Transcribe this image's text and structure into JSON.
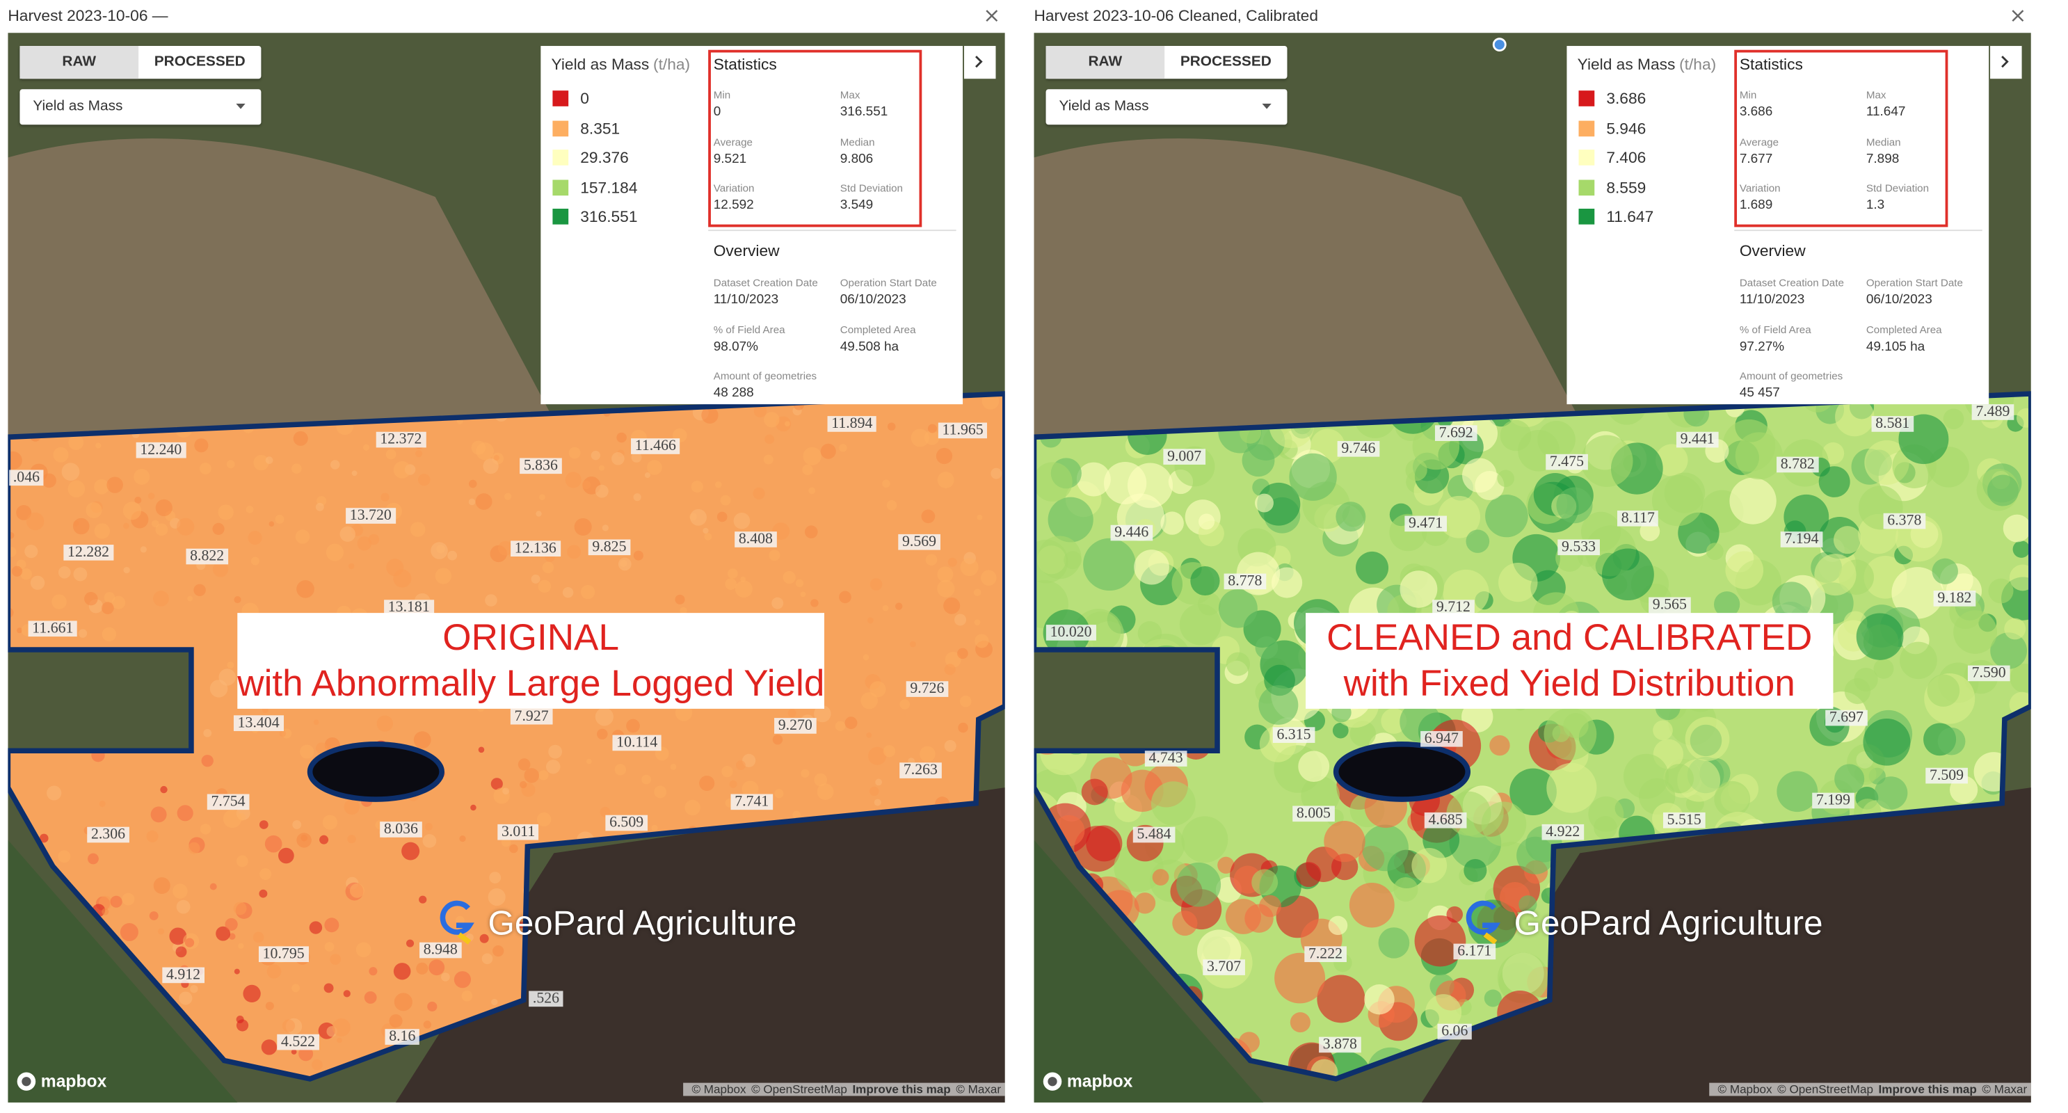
{
  "panels": [
    {
      "title": "Harvest 2023-10-06 —",
      "tabs": [
        "RAW",
        "PROCESSED"
      ],
      "dropdown": "Yield as Mass",
      "legend": {
        "title": "Yield as Mass",
        "unit": "(t/ha)",
        "items": [
          "0",
          "8.351",
          "29.376",
          "157.184",
          "316.551"
        ],
        "colors": [
          "#d7191c",
          "#fdae61",
          "#ffffbf",
          "#a6d96a",
          "#1a9641"
        ]
      },
      "statistics": {
        "title": "Statistics",
        "items": [
          {
            "label": "Min",
            "value": "0"
          },
          {
            "label": "Max",
            "value": "316.551"
          },
          {
            "label": "Average",
            "value": "9.521"
          },
          {
            "label": "Median",
            "value": "9.806"
          },
          {
            "label": "Variation",
            "value": "12.592"
          },
          {
            "label": "Std Deviation",
            "value": "3.549"
          }
        ]
      },
      "overview": {
        "title": "Overview",
        "items": [
          {
            "label": "Dataset Creation Date",
            "value": "11/10/2023"
          },
          {
            "label": "Operation Start Date",
            "value": "06/10/2023"
          },
          {
            "label": "% of Field Area",
            "value": "98.07%"
          },
          {
            "label": "Completed Area",
            "value": "49.508 ha"
          },
          {
            "label": "Amount of geometries",
            "value": "48 288"
          }
        ]
      },
      "map_labels": [
        ".046",
        "12.240",
        "12.372",
        "11.466",
        "11.894",
        "11.965",
        "5.836",
        "13.720",
        "12.282",
        "8.822",
        "12.136",
        "9.825",
        "8.408",
        "9.569",
        "11.661",
        "13.181",
        "9.726",
        "13.404",
        "7.927",
        "10.114",
        "9.270",
        "7.263",
        "7.754",
        "8.036",
        "3.011",
        "6.509",
        "7.741",
        "2.306",
        "4.912",
        "10.795",
        "8.948",
        ".526",
        "4.522",
        "8.16"
      ],
      "overlay": [
        "ORIGINAL",
        "with Abnormally Large Logged Yield"
      ],
      "watermark": "GeoPard Agriculture",
      "mapbox": "mapbox",
      "attribution": [
        "© Mapbox",
        "© OpenStreetMap",
        "Improve this map",
        "© Maxar"
      ]
    },
    {
      "title": "Harvest 2023-10-06 Cleaned, Calibrated",
      "tabs": [
        "RAW",
        "PROCESSED"
      ],
      "dropdown": "Yield as Mass",
      "legend": {
        "title": "Yield as Mass",
        "unit": "(t/ha)",
        "items": [
          "3.686",
          "5.946",
          "7.406",
          "8.559",
          "11.647"
        ],
        "colors": [
          "#d7191c",
          "#fdae61",
          "#ffffbf",
          "#a6d96a",
          "#1a9641"
        ]
      },
      "statistics": {
        "title": "Statistics",
        "items": [
          {
            "label": "Min",
            "value": "3.686"
          },
          {
            "label": "Max",
            "value": "11.647"
          },
          {
            "label": "Average",
            "value": "7.677"
          },
          {
            "label": "Median",
            "value": "7.898"
          },
          {
            "label": "Variation",
            "value": "1.689"
          },
          {
            "label": "Std Deviation",
            "value": "1.3"
          }
        ]
      },
      "overview": {
        "title": "Overview",
        "items": [
          {
            "label": "Dataset Creation Date",
            "value": "11/10/2023"
          },
          {
            "label": "Operation Start Date",
            "value": "06/10/2023"
          },
          {
            "label": "% of Field Area",
            "value": "97.27%"
          },
          {
            "label": "Completed Area",
            "value": "49.105 ha"
          },
          {
            "label": "Amount of geometries",
            "value": "45 457"
          }
        ]
      },
      "map_labels": [
        "9.007",
        "7.692",
        "9.746",
        "7.475",
        "9.441",
        "8.581",
        "7.489",
        "8.782",
        "9.446",
        "9.471",
        "8.117",
        "9.533",
        "7.194",
        "6.378",
        "8.778",
        "9.712",
        "9.565",
        "9.182",
        "10.020",
        "7.590",
        "7.697",
        "6.315",
        "6.947",
        "4.743",
        "7.509",
        "7.199",
        "8.005",
        "4.685",
        "4.922",
        "5.515",
        "5.484",
        "7.222",
        "6.171",
        "3.707",
        "3.878",
        "6.06"
      ],
      "overlay": [
        "CLEANED and CALIBRATED",
        "with Fixed Yield Distribution"
      ],
      "watermark": "GeoPard Agriculture",
      "mapbox": "mapbox",
      "attribution": [
        "© Mapbox",
        "© OpenStreetMap",
        "Improve this map",
        "© Maxar"
      ]
    }
  ]
}
